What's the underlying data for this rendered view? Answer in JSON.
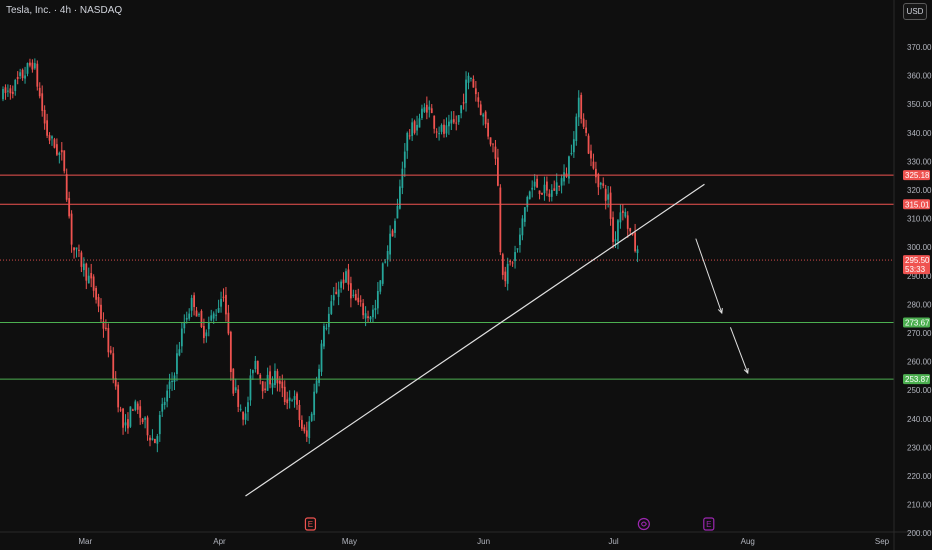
{
  "header": {
    "title": "Tesla, Inc. · 4h · NASDAQ",
    "currency_button": "USD"
  },
  "colors": {
    "background": "#0f0f0f",
    "up": "#26a69a",
    "down": "#ef5350",
    "resistance": "#ef5350",
    "support": "#4caf50",
    "trendline": "#e0e0e0",
    "event_earnings": "#ef5350",
    "event_other": "#9c27b0"
  },
  "events": [
    {
      "label": "E",
      "type": "earnings",
      "x": "2025-04-22"
    },
    {
      "label": "",
      "type": "other",
      "x": "2025-07-08",
      "icon": "swirl-icon"
    },
    {
      "label": "E",
      "type": "other",
      "x": "2025-07-23"
    }
  ],
  "chart_data": {
    "type": "candlestick",
    "symbol": "Tesla, Inc.",
    "interval": "4h",
    "exchange": "NASDAQ",
    "ylim": [
      200,
      370
    ],
    "y_ticks": [
      200,
      210,
      220,
      230,
      240,
      250,
      260,
      270,
      280,
      290,
      300,
      310,
      320,
      330,
      340,
      350,
      360,
      370
    ],
    "x_ticks": [
      {
        "label": "Mar",
        "x": "2025-03-01"
      },
      {
        "label": "Apr",
        "x": "2025-04-01"
      },
      {
        "label": "May",
        "x": "2025-05-01"
      },
      {
        "label": "Jun",
        "x": "2025-06-01"
      },
      {
        "label": "Jul",
        "x": "2025-07-01"
      },
      {
        "label": "Aug",
        "x": "2025-08-01"
      },
      {
        "label": "Sep",
        "x": "2025-09-01"
      }
    ],
    "price_path": [
      [
        "2025-02-10",
        353
      ],
      [
        "2025-02-13",
        357
      ],
      [
        "2025-02-17",
        365
      ],
      [
        "2025-02-20",
        340
      ],
      [
        "2025-02-24",
        330
      ],
      [
        "2025-02-26",
        300
      ],
      [
        "2025-02-28",
        295
      ],
      [
        "2025-03-03",
        285
      ],
      [
        "2025-03-06",
        268
      ],
      [
        "2025-03-10",
        235
      ],
      [
        "2025-03-12",
        245
      ],
      [
        "2025-03-14",
        240
      ],
      [
        "2025-03-17",
        232
      ],
      [
        "2025-03-19",
        245
      ],
      [
        "2025-03-21",
        253
      ],
      [
        "2025-03-24",
        275
      ],
      [
        "2025-03-26",
        282
      ],
      [
        "2025-03-28",
        270
      ],
      [
        "2025-03-31",
        277
      ],
      [
        "2025-04-02",
        285
      ],
      [
        "2025-04-04",
        252
      ],
      [
        "2025-04-07",
        240
      ],
      [
        "2025-04-09",
        262
      ],
      [
        "2025-04-11",
        252
      ],
      [
        "2025-04-14",
        255
      ],
      [
        "2025-04-16",
        247
      ],
      [
        "2025-04-18",
        248
      ],
      [
        "2025-04-21",
        232
      ],
      [
        "2025-04-23",
        250
      ],
      [
        "2025-04-25",
        270
      ],
      [
        "2025-04-28",
        285
      ],
      [
        "2025-04-30",
        290
      ],
      [
        "2025-05-02",
        282
      ],
      [
        "2025-05-05",
        276
      ],
      [
        "2025-05-07",
        278
      ],
      [
        "2025-05-09",
        295
      ],
      [
        "2025-05-12",
        312
      ],
      [
        "2025-05-14",
        338
      ],
      [
        "2025-05-16",
        342
      ],
      [
        "2025-05-19",
        350
      ],
      [
        "2025-05-21",
        342
      ],
      [
        "2025-05-23",
        340
      ],
      [
        "2025-05-26",
        344
      ],
      [
        "2025-05-28",
        357
      ],
      [
        "2025-05-29",
        360
      ],
      [
        "2025-06-02",
        340
      ],
      [
        "2025-06-04",
        332
      ],
      [
        "2025-06-05",
        295
      ],
      [
        "2025-06-06",
        290
      ],
      [
        "2025-06-09",
        300
      ],
      [
        "2025-06-11",
        318
      ],
      [
        "2025-06-13",
        322
      ],
      [
        "2025-06-16",
        318
      ],
      [
        "2025-06-18",
        322
      ],
      [
        "2025-06-20",
        325
      ],
      [
        "2025-06-23",
        350
      ],
      [
        "2025-06-24",
        345
      ],
      [
        "2025-06-26",
        328
      ],
      [
        "2025-06-28",
        322
      ],
      [
        "2025-06-30",
        316
      ],
      [
        "2025-07-01",
        300
      ],
      [
        "2025-07-02",
        310
      ],
      [
        "2025-07-03",
        315
      ],
      [
        "2025-07-05",
        304
      ],
      [
        "2025-07-07",
        295.5
      ]
    ],
    "last_price": {
      "value": 295.5,
      "label": "295.50",
      "countdown": "53:33"
    },
    "horizontal_lines": [
      {
        "name": "resistance-upper",
        "value": 325.18,
        "label": "325.18",
        "kind": "resistance"
      },
      {
        "name": "resistance-lower",
        "value": 315.01,
        "label": "315.01",
        "kind": "resistance"
      },
      {
        "name": "support-upper",
        "value": 273.67,
        "label": "273.67",
        "kind": "support"
      },
      {
        "name": "support-lower",
        "value": 253.87,
        "label": "253.87",
        "kind": "support"
      }
    ],
    "trendline": {
      "x1": "2025-04-07",
      "y1": 213,
      "x2": "2025-07-22",
      "y2": 322
    },
    "arrows": [
      {
        "x1": "2025-07-20",
        "y1": 303,
        "x2": "2025-07-26",
        "y2": 277
      },
      {
        "x1": "2025-07-28",
        "y1": 272,
        "x2": "2025-08-01",
        "y2": 256
      }
    ]
  }
}
